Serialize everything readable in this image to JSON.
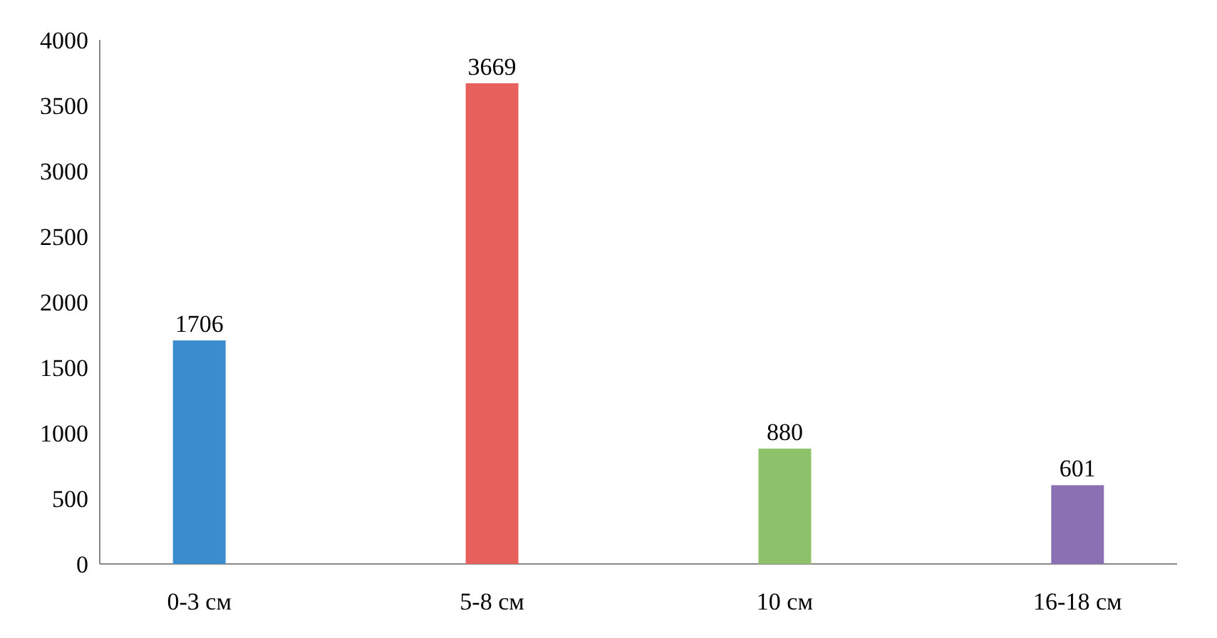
{
  "chart_data": {
    "type": "bar",
    "categories": [
      "0-3 см",
      "5-8 см",
      "10 см",
      "16-18 см"
    ],
    "values": [
      1706,
      3669,
      880,
      601
    ],
    "colors": [
      "#3a8ccc",
      "#e8605c",
      "#8dc26a",
      "#8c70b4"
    ],
    "ylim": [
      0,
      4000
    ],
    "yticks": [
      0,
      500,
      1000,
      1500,
      2000,
      2500,
      3000,
      3500,
      4000
    ],
    "data_labels": true
  }
}
